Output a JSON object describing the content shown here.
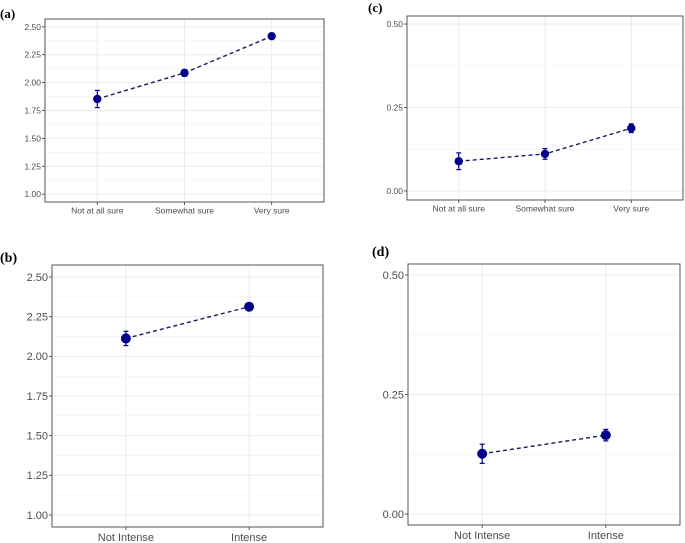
{
  "chart_data": [
    {
      "type": "line",
      "panel": "(a)",
      "categories": [
        "Not at all sure",
        "Somewhat sure",
        "Very sure"
      ],
      "values": [
        1.853,
        2.087,
        2.416
      ],
      "errors": [
        0.077,
        0.03,
        0.02
      ],
      "yticks": [
        "1.00",
        "1.25",
        "1.50",
        "1.75",
        "2.00",
        "2.25",
        "2.50"
      ],
      "ylim": [
        0.93,
        2.57
      ],
      "xlabel": "",
      "ylabel": "",
      "grid": true,
      "color": "#00008b"
    },
    {
      "type": "line",
      "panel": "(c)",
      "categories": [
        "Not at all sure",
        "Somewhat sure",
        "Very sure"
      ],
      "values": [
        0.089,
        0.111,
        0.188
      ],
      "errors": [
        0.025,
        0.016,
        0.013
      ],
      "yticks": [
        "0.00",
        "0.25",
        "0.50"
      ],
      "ylim": [
        -0.027,
        0.524
      ],
      "xlabel": "",
      "ylabel": "",
      "grid": true,
      "color": "#00008b"
    },
    {
      "type": "line",
      "panel": "(b)",
      "categories": [
        "Not Intense",
        "Intense"
      ],
      "values": [
        2.113,
        2.313
      ],
      "errors": [
        0.045,
        0.02
      ],
      "yticks": [
        "1.00",
        "1.25",
        "1.50",
        "1.75",
        "2.00",
        "2.25",
        "2.50"
      ],
      "ylim": [
        0.924,
        2.576
      ],
      "xlabel": "",
      "ylabel": "",
      "grid": true,
      "color": "#00008b"
    },
    {
      "type": "line",
      "panel": "(d)",
      "categories": [
        "Not Intense",
        "Intense"
      ],
      "values": [
        0.126,
        0.165
      ],
      "errors": [
        0.02,
        0.012
      ],
      "yticks": [
        "0.00",
        "0.25",
        "0.50"
      ],
      "ylim": [
        -0.023,
        0.523
      ],
      "xlabel": "",
      "ylabel": "",
      "grid": true,
      "color": "#00008b"
    }
  ]
}
